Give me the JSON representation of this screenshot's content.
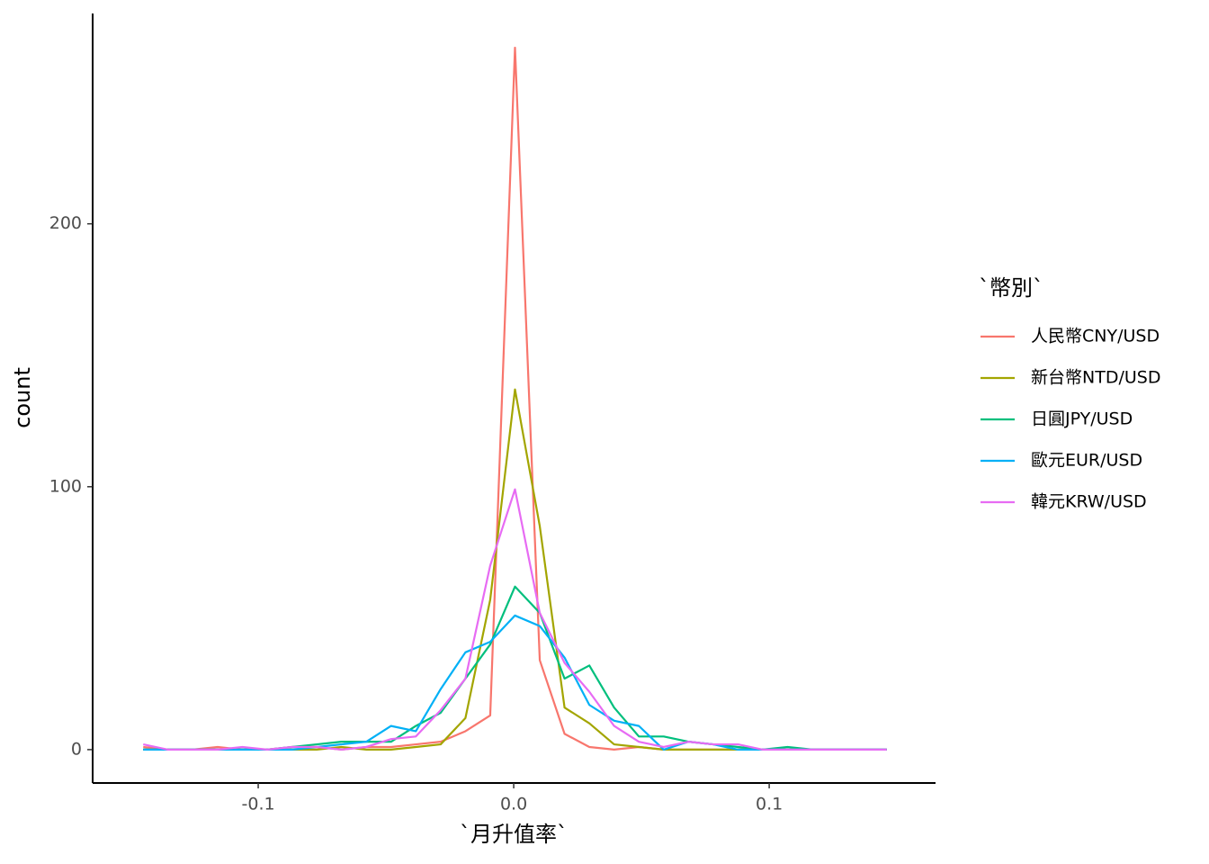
{
  "chart_data": {
    "type": "line",
    "x_label": "`月升值率`",
    "y_label": "count",
    "legend_title": "`幣別`",
    "x": [
      -0.145,
      -0.1353,
      -0.1256,
      -0.1159,
      -0.1062,
      -0.0965,
      -0.0868,
      -0.0771,
      -0.0674,
      -0.0577,
      -0.048,
      -0.0383,
      -0.0286,
      -0.0189,
      -0.0092,
      0.0005,
      0.0102,
      0.0199,
      0.0296,
      0.0393,
      0.049,
      0.0587,
      0.0684,
      0.0781,
      0.0878,
      0.0975,
      0.1072,
      0.1169,
      0.1266,
      0.1363,
      0.146
    ],
    "series": [
      {
        "name": "人民幣CNY/USD",
        "color": "#F8766D",
        "values": [
          1,
          0,
          0,
          1,
          0,
          0,
          1,
          1,
          0,
          1,
          1,
          2,
          3,
          7,
          13,
          267,
          34,
          6,
          1,
          0,
          1,
          0,
          0,
          0,
          0,
          0,
          0,
          0,
          0,
          0,
          0
        ]
      },
      {
        "name": "新台幣NTD/USD",
        "color": "#A3A500",
        "values": [
          0,
          0,
          0,
          0,
          0,
          0,
          0,
          0,
          1,
          0,
          0,
          1,
          2,
          12,
          57,
          137,
          85,
          16,
          10,
          2,
          1,
          0,
          0,
          0,
          0,
          0,
          0,
          0,
          0,
          0,
          0
        ]
      },
      {
        "name": "日圓JPY/USD",
        "color": "#00BF7D",
        "values": [
          0,
          0,
          0,
          0,
          0,
          0,
          1,
          2,
          3,
          3,
          3,
          9,
          14,
          27,
          40,
          62,
          52,
          27,
          32,
          16,
          5,
          5,
          3,
          2,
          1,
          0,
          1,
          0,
          0,
          0,
          0
        ]
      },
      {
        "name": "歐元EUR/USD",
        "color": "#00B0F6",
        "values": [
          0,
          0,
          0,
          0,
          0,
          0,
          0,
          1,
          2,
          3,
          9,
          7,
          23,
          37,
          41,
          51,
          47,
          35,
          17,
          11,
          9,
          0,
          3,
          2,
          0,
          0,
          0,
          0,
          0,
          0,
          0
        ]
      },
      {
        "name": "韓元KRW/USD",
        "color": "#E76BF3",
        "values": [
          2,
          0,
          0,
          0,
          1,
          0,
          1,
          1,
          0,
          1,
          4,
          5,
          15,
          27,
          70,
          99,
          52,
          33,
          22,
          9,
          3,
          1,
          3,
          2,
          2,
          0,
          0,
          0,
          0,
          0,
          0
        ]
      }
    ],
    "xlim": [
      -0.1648,
      0.1651
    ],
    "ylim": [
      -12.7,
      280
    ],
    "xticks": [
      -0.1,
      {
        "value": 0,
        "label": "0.0"
      },
      0.1
    ],
    "yticks": [
      0,
      100,
      200
    ]
  }
}
